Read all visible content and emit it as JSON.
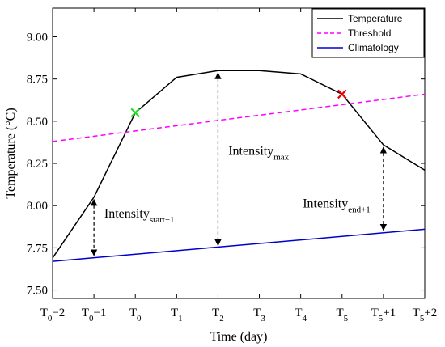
{
  "chart_data": {
    "type": "line",
    "xlabel": "Time (day)",
    "ylabel": "Temperature (°C)",
    "ylim": [
      7.45,
      9.17
    ],
    "xlim": [
      0,
      9
    ],
    "y_ticks": [
      7.5,
      7.75,
      8.0,
      8.25,
      8.5,
      8.75,
      9.0
    ],
    "y_tick_labels": [
      "7.50",
      "7.75",
      "8.00",
      "8.25",
      "8.50",
      "8.75",
      "9.00"
    ],
    "x_ticks": [
      {
        "x": 0,
        "base": "T",
        "sub": "0",
        "suffix": "−2"
      },
      {
        "x": 1,
        "base": "T",
        "sub": "0",
        "suffix": "−1"
      },
      {
        "x": 2,
        "base": "T",
        "sub": "0",
        "suffix": ""
      },
      {
        "x": 3,
        "base": "T",
        "sub": "1",
        "suffix": ""
      },
      {
        "x": 4,
        "base": "T",
        "sub": "2",
        "suffix": ""
      },
      {
        "x": 5,
        "base": "T",
        "sub": "3",
        "suffix": ""
      },
      {
        "x": 6,
        "base": "T",
        "sub": "4",
        "suffix": ""
      },
      {
        "x": 7,
        "base": "T",
        "sub": "5",
        "suffix": ""
      },
      {
        "x": 8,
        "base": "T",
        "sub": "5",
        "suffix": "+1"
      },
      {
        "x": 9,
        "base": "T",
        "sub": "5",
        "suffix": "+2"
      }
    ],
    "legend_position": "top-right",
    "series": [
      {
        "name": "Temperature",
        "color": "#000000",
        "style": "solid",
        "x": [
          0,
          1,
          2,
          3,
          4,
          5,
          6,
          7,
          8,
          9
        ],
        "y": [
          7.69,
          8.05,
          8.55,
          8.76,
          8.8,
          8.8,
          8.78,
          8.66,
          8.36,
          8.21
        ]
      },
      {
        "name": "Threshold",
        "color": "#ff00ff",
        "style": "dashed",
        "x": [
          0,
          9
        ],
        "y": [
          8.38,
          8.66
        ]
      },
      {
        "name": "Climatology",
        "color": "#0000cc",
        "style": "solid",
        "x": [
          0,
          9
        ],
        "y": [
          7.67,
          7.86
        ]
      }
    ],
    "markers": [
      {
        "x": 2,
        "y": 8.55,
        "color": "#22dd22",
        "shape": "x"
      },
      {
        "x": 7,
        "y": 8.66,
        "color": "#ee0000",
        "shape": "x"
      }
    ],
    "arrows": [
      {
        "x": 1,
        "y_top": 8.05,
        "y_bottom": 7.69
      },
      {
        "x": 4,
        "y_top": 8.8,
        "y_bottom": 7.75
      },
      {
        "x": 8,
        "y_top": 8.36,
        "y_bottom": 7.84
      }
    ],
    "annotations": [
      {
        "base": "Intensity",
        "sub": "start−1",
        "x": 1.25,
        "y": 7.93
      },
      {
        "base": "Intensity",
        "sub": "max",
        "x": 4.25,
        "y": 8.3
      },
      {
        "base": "Intensity",
        "sub": "end+1",
        "x": 6.05,
        "y": 7.99
      }
    ]
  }
}
